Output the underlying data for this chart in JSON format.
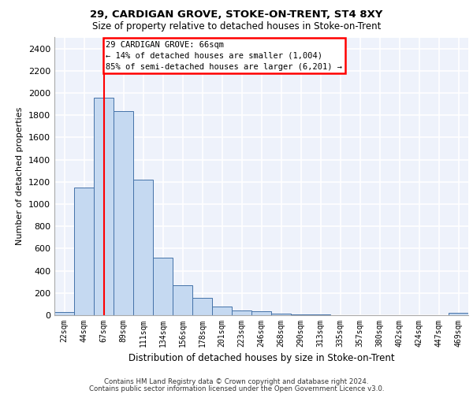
{
  "title1": "29, CARDIGAN GROVE, STOKE-ON-TRENT, ST4 8XY",
  "title2": "Size of property relative to detached houses in Stoke-on-Trent",
  "xlabel": "Distribution of detached houses by size in Stoke-on-Trent",
  "ylabel": "Number of detached properties",
  "categories": [
    "22sqm",
    "44sqm",
    "67sqm",
    "89sqm",
    "111sqm",
    "134sqm",
    "156sqm",
    "178sqm",
    "201sqm",
    "223sqm",
    "246sqm",
    "268sqm",
    "290sqm",
    "313sqm",
    "335sqm",
    "357sqm",
    "380sqm",
    "402sqm",
    "424sqm",
    "447sqm",
    "469sqm"
  ],
  "values": [
    25,
    1150,
    1960,
    1840,
    1220,
    515,
    270,
    155,
    80,
    45,
    35,
    15,
    10,
    5,
    3,
    0,
    0,
    0,
    0,
    0,
    20
  ],
  "bar_color": "#c5d9f1",
  "bar_edge_color": "#4472a8",
  "annotation_text": "29 CARDIGAN GROVE: 66sqm\n← 14% of detached houses are smaller (1,004)\n85% of semi-detached houses are larger (6,201) →",
  "annotation_box_color": "white",
  "annotation_box_edge_color": "red",
  "vline_color": "red",
  "vline_x_index": 2,
  "ylim": [
    0,
    2500
  ],
  "yticks": [
    0,
    200,
    400,
    600,
    800,
    1000,
    1200,
    1400,
    1600,
    1800,
    2000,
    2200,
    2400
  ],
  "footer1": "Contains HM Land Registry data © Crown copyright and database right 2024.",
  "footer2": "Contains public sector information licensed under the Open Government Licence v3.0.",
  "background_color": "#eef2fb",
  "grid_color": "white"
}
